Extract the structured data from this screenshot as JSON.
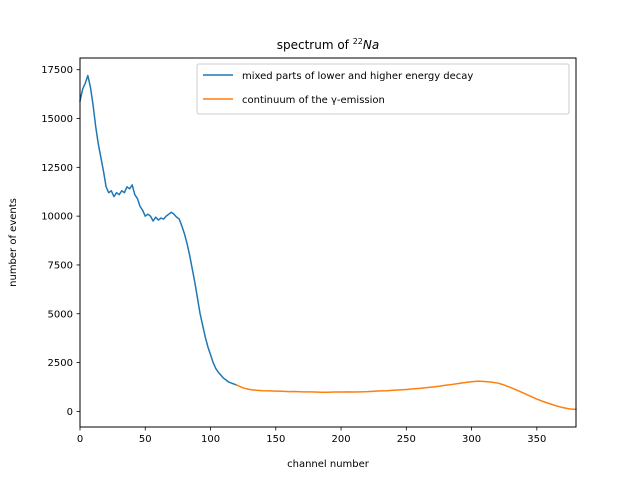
{
  "chart_data": {
    "type": "line",
    "title_prefix": "spectrum of ",
    "title_isotope_mass": "22",
    "title_isotope_symbol": "Na",
    "xlabel": "channel number",
    "ylabel": "number of events",
    "xlim": [
      0,
      380
    ],
    "ylim": [
      -800,
      18100
    ],
    "xticks": [
      "0",
      "50",
      "100",
      "150",
      "200",
      "250",
      "300",
      "350"
    ],
    "yticks": [
      "0",
      "2500",
      "5000",
      "7500",
      "10000",
      "12500",
      "15000",
      "17500"
    ],
    "grid": false,
    "legend_position": "top-right",
    "series": [
      {
        "name": "mixed parts of lower and higher energy decay",
        "color": "#1f77b4",
        "points": [
          [
            0,
            15900
          ],
          [
            2,
            16500
          ],
          [
            4,
            16800
          ],
          [
            6,
            17200
          ],
          [
            8,
            16600
          ],
          [
            10,
            15700
          ],
          [
            12,
            14600
          ],
          [
            14,
            13700
          ],
          [
            16,
            13000
          ],
          [
            18,
            12300
          ],
          [
            20,
            11500
          ],
          [
            22,
            11200
          ],
          [
            24,
            11300
          ],
          [
            26,
            11000
          ],
          [
            28,
            11200
          ],
          [
            30,
            11100
          ],
          [
            32,
            11300
          ],
          [
            34,
            11200
          ],
          [
            36,
            11500
          ],
          [
            38,
            11400
          ],
          [
            40,
            11600
          ],
          [
            42,
            11100
          ],
          [
            44,
            10900
          ],
          [
            46,
            10500
          ],
          [
            48,
            10300
          ],
          [
            50,
            10000
          ],
          [
            52,
            10100
          ],
          [
            54,
            10000
          ],
          [
            56,
            9750
          ],
          [
            58,
            9950
          ],
          [
            60,
            9800
          ],
          [
            62,
            9900
          ],
          [
            64,
            9850
          ],
          [
            66,
            10000
          ],
          [
            68,
            10100
          ],
          [
            70,
            10200
          ],
          [
            72,
            10100
          ],
          [
            74,
            9950
          ],
          [
            76,
            9850
          ],
          [
            78,
            9500
          ],
          [
            80,
            9100
          ],
          [
            82,
            8600
          ],
          [
            84,
            8000
          ],
          [
            86,
            7300
          ],
          [
            88,
            6600
          ],
          [
            90,
            5800
          ],
          [
            92,
            5000
          ],
          [
            94,
            4400
          ],
          [
            96,
            3800
          ],
          [
            98,
            3300
          ],
          [
            100,
            2900
          ],
          [
            102,
            2500
          ],
          [
            104,
            2200
          ],
          [
            106,
            2000
          ],
          [
            108,
            1850
          ],
          [
            110,
            1700
          ],
          [
            112,
            1600
          ],
          [
            114,
            1500
          ],
          [
            116,
            1450
          ],
          [
            118,
            1400
          ],
          [
            120,
            1350
          ]
        ]
      },
      {
        "name": "continuum of the γ-emission",
        "color": "#ff7f0e",
        "points": [
          [
            120,
            1350
          ],
          [
            125,
            1200
          ],
          [
            130,
            1120
          ],
          [
            135,
            1080
          ],
          [
            140,
            1060
          ],
          [
            145,
            1050
          ],
          [
            150,
            1040
          ],
          [
            155,
            1030
          ],
          [
            160,
            1010
          ],
          [
            165,
            1020
          ],
          [
            170,
            1000
          ],
          [
            175,
            1000
          ],
          [
            180,
            990
          ],
          [
            185,
            980
          ],
          [
            190,
            980
          ],
          [
            195,
            990
          ],
          [
            200,
            990
          ],
          [
            205,
            1000
          ],
          [
            210,
            990
          ],
          [
            215,
            1000
          ],
          [
            220,
            1010
          ],
          [
            225,
            1030
          ],
          [
            230,
            1050
          ],
          [
            235,
            1060
          ],
          [
            240,
            1080
          ],
          [
            245,
            1100
          ],
          [
            250,
            1120
          ],
          [
            255,
            1150
          ],
          [
            260,
            1180
          ],
          [
            265,
            1210
          ],
          [
            270,
            1250
          ],
          [
            275,
            1290
          ],
          [
            280,
            1340
          ],
          [
            285,
            1380
          ],
          [
            290,
            1430
          ],
          [
            295,
            1480
          ],
          [
            300,
            1520
          ],
          [
            305,
            1550
          ],
          [
            310,
            1530
          ],
          [
            315,
            1500
          ],
          [
            320,
            1450
          ],
          [
            325,
            1350
          ],
          [
            330,
            1220
          ],
          [
            335,
            1080
          ],
          [
            340,
            930
          ],
          [
            345,
            780
          ],
          [
            350,
            630
          ],
          [
            355,
            500
          ],
          [
            360,
            390
          ],
          [
            365,
            280
          ],
          [
            370,
            190
          ],
          [
            375,
            130
          ],
          [
            380,
            100
          ]
        ]
      }
    ]
  }
}
